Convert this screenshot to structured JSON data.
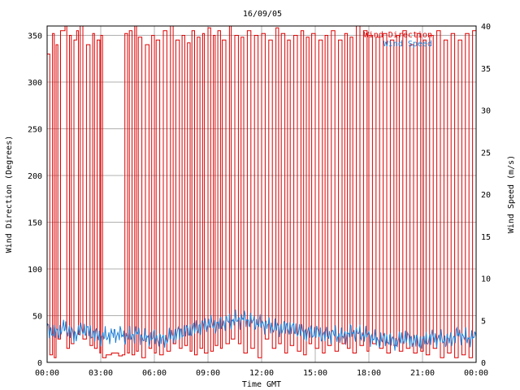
{
  "chart_data": {
    "type": "line",
    "title": "16/09/05",
    "xlabel": "Time GMT",
    "ylabel_left": "Wind Direction (Degrees)",
    "ylabel_right": "Wind Speed (m/s)",
    "x_ticks": [
      "00:00",
      "03:00",
      "06:00",
      "09:00",
      "12:00",
      "15:00",
      "18:00",
      "21:00",
      "00:00"
    ],
    "x_range_hours": [
      0,
      24
    ],
    "y_left_range": [
      0,
      360
    ],
    "y_left_ticks": [
      0,
      50,
      100,
      150,
      200,
      250,
      300,
      350
    ],
    "y_right_range": [
      0,
      40
    ],
    "y_right_ticks": [
      0,
      5,
      10,
      15,
      20,
      25,
      30,
      35,
      40
    ],
    "grid": true,
    "legend_placement": "top-right",
    "series": [
      {
        "name": "Wind Direction",
        "axis": "left",
        "color": "#dd0000",
        "x_hours": [
          0.0,
          0.15,
          0.3,
          0.4,
          0.5,
          0.6,
          0.75,
          1.0,
          1.1,
          1.25,
          1.35,
          1.5,
          1.65,
          1.75,
          1.85,
          2.0,
          2.2,
          2.4,
          2.55,
          2.65,
          2.8,
          2.95,
          3.0,
          3.1,
          3.3,
          3.6,
          4.0,
          4.2,
          4.35,
          4.5,
          4.6,
          4.75,
          4.9,
          5.0,
          5.1,
          5.3,
          5.5,
          5.7,
          5.85,
          6.0,
          6.1,
          6.3,
          6.5,
          6.7,
          6.9,
          7.05,
          7.2,
          7.4,
          7.55,
          7.7,
          7.85,
          8.0,
          8.1,
          8.25,
          8.4,
          8.55,
          8.7,
          8.8,
          9.0,
          9.15,
          9.3,
          9.4,
          9.55,
          9.7,
          9.8,
          10.0,
          10.2,
          10.3,
          10.5,
          10.7,
          10.85,
          11.0,
          11.2,
          11.4,
          11.6,
          11.8,
          12.0,
          12.2,
          12.4,
          12.6,
          12.8,
          12.95,
          13.1,
          13.3,
          13.45,
          13.6,
          13.8,
          14.0,
          14.2,
          14.35,
          14.5,
          14.65,
          14.8,
          15.0,
          15.2,
          15.4,
          15.55,
          15.7,
          15.9,
          16.1,
          16.3,
          16.5,
          16.65,
          16.8,
          16.95,
          17.1,
          17.3,
          17.5,
          17.7,
          17.9,
          18.0,
          18.2,
          18.4,
          18.6,
          18.8,
          19.0,
          19.2,
          19.4,
          19.55,
          19.7,
          19.9,
          20.1,
          20.3,
          20.5,
          20.7,
          20.9,
          21.05,
          21.2,
          21.4,
          21.6,
          21.8,
          22.0,
          22.2,
          22.4,
          22.6,
          22.8,
          23.0,
          23.2,
          23.4,
          23.6,
          23.8,
          24.0
        ],
        "values": [
          330,
          8,
          352,
          5,
          340,
          25,
          355,
          360,
          15,
          350,
          20,
          345,
          355,
          30,
          360,
          25,
          340,
          18,
          352,
          15,
          345,
          10,
          350,
          5,
          8,
          10,
          7,
          8,
          352,
          10,
          355,
          8,
          360,
          12,
          348,
          5,
          340,
          15,
          350,
          10,
          345,
          8,
          355,
          12,
          360,
          20,
          345,
          15,
          350,
          18,
          342,
          12,
          355,
          8,
          348,
          15,
          352,
          10,
          358,
          12,
          350,
          18,
          355,
          15,
          345,
          20,
          360,
          25,
          350,
          20,
          348,
          10,
          355,
          15,
          350,
          5,
          352,
          25,
          345,
          15,
          358,
          20,
          352,
          10,
          345,
          18,
          350,
          12,
          355,
          8,
          348,
          20,
          352,
          15,
          345,
          10,
          350,
          18,
          355,
          12,
          345,
          20,
          352,
          15,
          348,
          10,
          360,
          18,
          355,
          12,
          350,
          20,
          348,
          15,
          352,
          10,
          345,
          18,
          350,
          12,
          355,
          15,
          340,
          10,
          352,
          12,
          345,
          8,
          350,
          15,
          355,
          5,
          345,
          10,
          352,
          5,
          345,
          8,
          352,
          5,
          355,
          3
        ],
        "values_note": "Direction flips between near 0 and near 360 repeatedly"
      },
      {
        "name": "Wind Speed",
        "axis": "right",
        "color": "#1f7fd6",
        "x_hours": [
          0.0,
          0.5,
          1.0,
          1.5,
          2.0,
          2.5,
          3.0,
          3.5,
          4.0,
          4.5,
          5.0,
          5.5,
          6.0,
          6.5,
          7.0,
          7.5,
          8.0,
          8.5,
          9.0,
          9.5,
          10.0,
          10.5,
          11.0,
          11.5,
          12.0,
          12.5,
          13.0,
          13.5,
          14.0,
          14.5,
          15.0,
          15.5,
          16.0,
          16.5,
          17.0,
          17.5,
          18.0,
          18.5,
          19.0,
          19.5,
          20.0,
          20.5,
          21.0,
          21.5,
          22.0,
          22.5,
          23.0,
          23.5,
          24.0
        ],
        "values": [
          4.0,
          3.5,
          4.2,
          3.2,
          4.0,
          3.5,
          3.0,
          3.2,
          3.4,
          3.0,
          3.5,
          2.8,
          3.0,
          2.6,
          3.2,
          3.6,
          3.8,
          4.2,
          4.6,
          4.4,
          4.8,
          5.0,
          5.2,
          4.8,
          4.6,
          4.3,
          4.0,
          4.2,
          3.8,
          3.5,
          3.6,
          3.2,
          3.4,
          3.0,
          3.6,
          3.4,
          3.2,
          2.6,
          2.8,
          2.4,
          3.0,
          2.6,
          2.4,
          3.0,
          2.8,
          2.6,
          3.4,
          2.8,
          3.0
        ]
      }
    ]
  }
}
